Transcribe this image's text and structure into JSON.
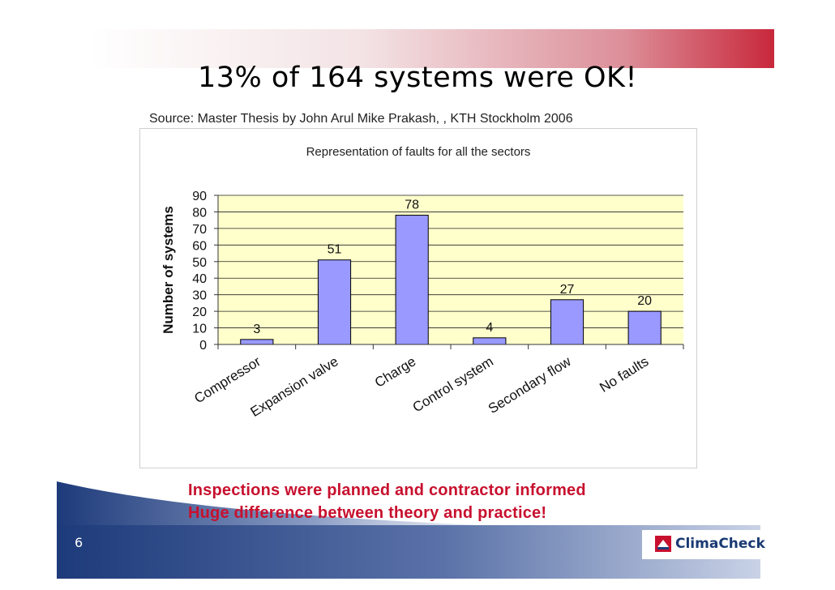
{
  "slide": {
    "title": "13% of 164 systems were OK!",
    "source": "Source: Master Thesis by John Arul Mike Prakash, , KTH Stockholm 2006",
    "message_line1": "Inspections were planned and contractor informed",
    "message_line2": "Huge difference between theory and practice!",
    "page_number": "6",
    "logo_text": "ClimaCheck"
  },
  "colors": {
    "title_text": "#000000",
    "accent_red": "#c8102e",
    "band_navy": "#1d3a7a",
    "plot_bg": "#ffffcc",
    "bar_fill": "#9999ff",
    "bar_stroke": "#000000"
  },
  "chart_data": {
    "type": "bar",
    "title": "Representation of faults for all the sectors",
    "xlabel": "",
    "ylabel": "Number of systems",
    "categories": [
      "Compressor",
      "Expansion valve",
      "Charge",
      "Control system",
      "Secondary flow",
      "No faults"
    ],
    "values": [
      3,
      51,
      78,
      4,
      27,
      20
    ],
    "data_labels": [
      "3",
      "51",
      "78",
      "4",
      "27",
      "20"
    ],
    "ylim": [
      0,
      90
    ],
    "yticks": [
      0,
      10,
      20,
      30,
      40,
      50,
      60,
      70,
      80,
      90
    ],
    "grid": true,
    "legend": "none"
  }
}
